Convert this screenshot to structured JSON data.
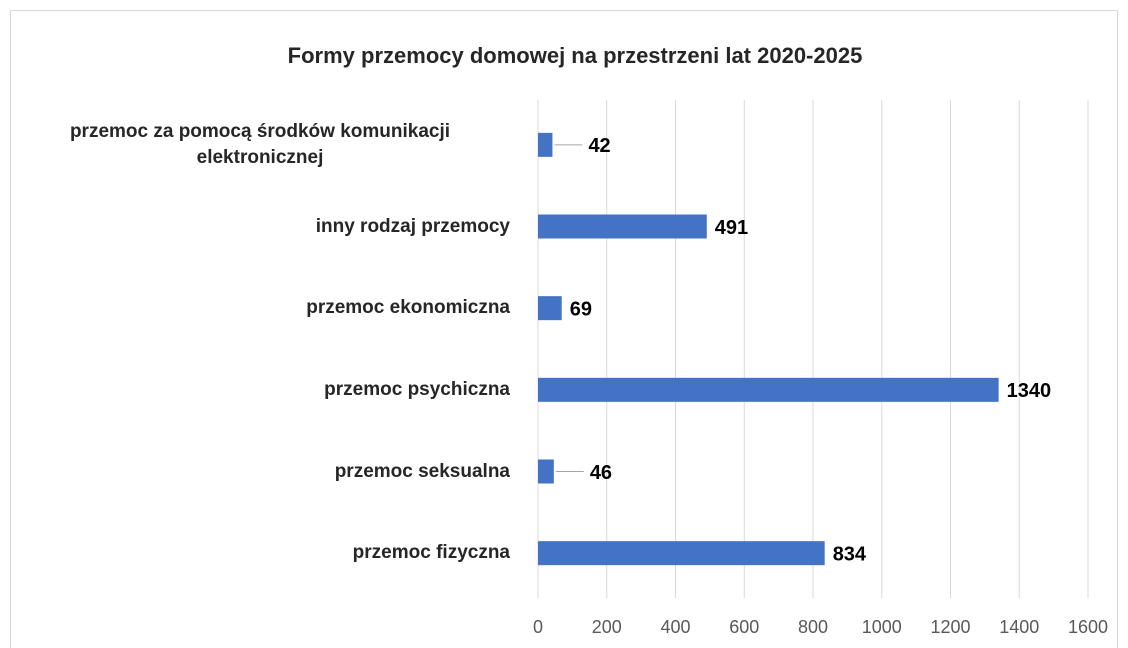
{
  "chart_data": {
    "type": "bar",
    "orientation": "horizontal",
    "title": "Formy przemocy domowej na przestrzeni lat 2020-2025",
    "categories": [
      "przemoc za pomocą środków komunikacji elektronicznej",
      "inny rodzaj przemocy",
      "przemoc ekonomiczna",
      "przemoc psychiczna",
      "przemoc seksualna",
      "przemoc fizyczna"
    ],
    "values": [
      42,
      491,
      69,
      1340,
      46,
      834
    ],
    "color": "#4472c4",
    "xlim": [
      0,
      1600
    ],
    "xticks": [
      0,
      200,
      400,
      600,
      800,
      1000,
      1200,
      1400,
      1600
    ],
    "grid": true
  }
}
